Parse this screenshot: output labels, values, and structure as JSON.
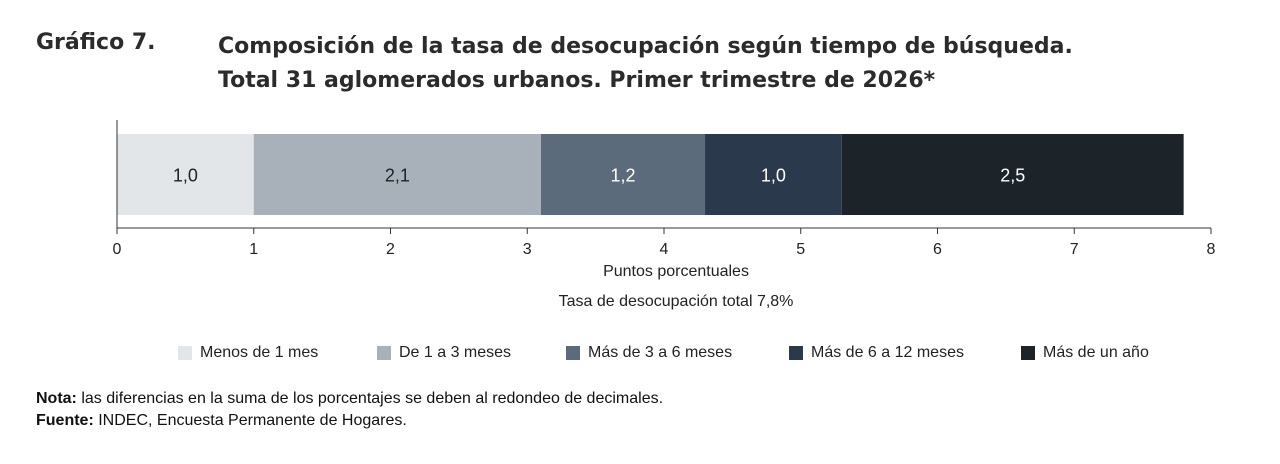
{
  "header": {
    "label": "Gráfico 7.",
    "title_line1": "Composición de la tasa de desocupación según tiempo de búsqueda.",
    "title_line2": "Total 31 aglomerados urbanos. Primer trimestre de 2026*"
  },
  "chart_data": {
    "type": "bar",
    "orientation": "horizontal-stacked",
    "xlabel": "Puntos porcentuales",
    "subtitle": "Tasa de desocupación total 7,8%",
    "xlim": [
      0,
      8
    ],
    "xticks": [
      "0",
      "1",
      "2",
      "3",
      "4",
      "5",
      "6",
      "7",
      "8"
    ],
    "series": [
      {
        "name": "Menos de 1 mes",
        "value": 1.0,
        "label": "1,0",
        "color": "#e3e6e9",
        "text_color": "#222222"
      },
      {
        "name": "De 1 a 3 meses",
        "value": 2.1,
        "label": "2,1",
        "color": "#a8b1ba",
        "text_color": "#222222"
      },
      {
        "name": "Más de 3 a 6 meses",
        "value": 1.2,
        "label": "1,2",
        "color": "#5c6b7b",
        "text_color": "#ffffff"
      },
      {
        "name": "Más de 6 a 12 meses",
        "value": 1.0,
        "label": "1,0",
        "color": "#2a3a4c",
        "text_color": "#ffffff"
      },
      {
        "name": "Más de un año",
        "value": 2.5,
        "label": "2,5",
        "color": "#1c2329",
        "text_color": "#ffffff"
      }
    ],
    "legend_position": "bottom"
  },
  "notes": {
    "nota_label": "Nota:",
    "nota_text": " las diferencias en la suma de los porcentajes se deben al redondeo de decimales.",
    "fuente_label": "Fuente:",
    "fuente_text": " INDEC, Encuesta Permanente de Hogares."
  }
}
